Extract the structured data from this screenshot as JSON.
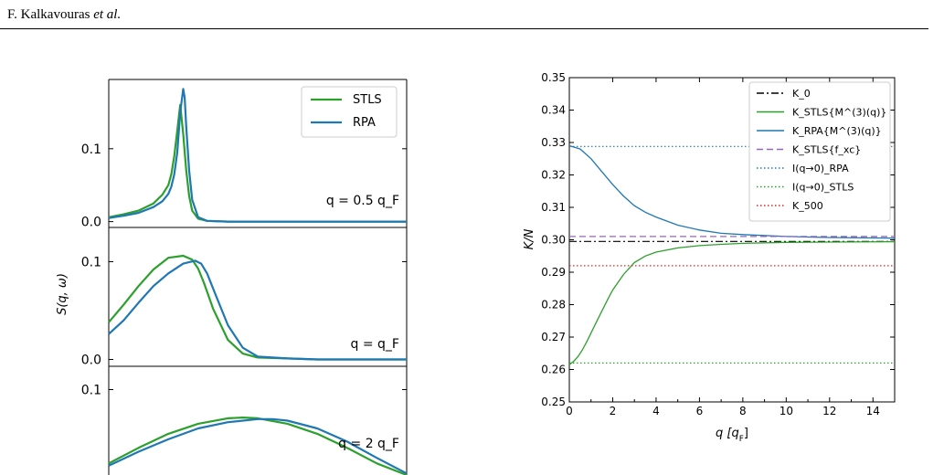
{
  "header": {
    "author_plain": "F. Kalkavouras ",
    "author_italic": "et al."
  },
  "chart_data": [
    {
      "type": "line",
      "subplots": [
        {
          "annotation": "q = 0.5 q_F",
          "yticks": [
            "0.1",
            "0.0"
          ]
        },
        {
          "annotation": "q = q_F",
          "yticks": [
            "0.1",
            "0.0"
          ]
        },
        {
          "annotation": "q = 2 q_F",
          "yticks": [
            "0.1"
          ]
        }
      ],
      "ylabel": "S(q, ω)",
      "legend": {
        "placement": "top-right",
        "entries": [
          "STLS",
          "RPA"
        ]
      },
      "colors": {
        "STLS": "#2ca02c",
        "RPA": "#1f77b4"
      },
      "series": [
        {
          "name": "STLS",
          "panel": 0,
          "x": [
            0.0,
            0.05,
            0.1,
            0.15,
            0.18,
            0.2,
            0.21,
            0.22,
            0.23,
            0.24,
            0.25,
            0.26,
            0.27,
            0.28,
            0.3,
            0.33,
            0.4,
            0.6,
            0.8,
            1.0
          ],
          "y": [
            0.006,
            0.01,
            0.015,
            0.025,
            0.037,
            0.05,
            0.065,
            0.09,
            0.125,
            0.16,
            0.12,
            0.07,
            0.035,
            0.015,
            0.004,
            0.001,
            0,
            0,
            0,
            0
          ]
        },
        {
          "name": "RPA",
          "panel": 0,
          "x": [
            0.0,
            0.05,
            0.1,
            0.15,
            0.18,
            0.2,
            0.21,
            0.22,
            0.23,
            0.24,
            0.25,
            0.255,
            0.26,
            0.27,
            0.28,
            0.3,
            0.33,
            0.4,
            0.6,
            0.8,
            1.0
          ],
          "y": [
            0.005,
            0.008,
            0.012,
            0.02,
            0.028,
            0.038,
            0.048,
            0.065,
            0.095,
            0.15,
            0.182,
            0.17,
            0.13,
            0.07,
            0.03,
            0.006,
            0.001,
            0,
            0,
            0,
            0
          ]
        },
        {
          "name": "STLS",
          "panel": 1,
          "x": [
            0.0,
            0.05,
            0.1,
            0.15,
            0.2,
            0.25,
            0.28,
            0.3,
            0.32,
            0.35,
            0.4,
            0.45,
            0.5,
            0.6,
            0.7,
            1.0
          ],
          "y": [
            0.038,
            0.056,
            0.075,
            0.092,
            0.104,
            0.106,
            0.102,
            0.093,
            0.078,
            0.052,
            0.02,
            0.006,
            0.002,
            0.001,
            0,
            0
          ]
        },
        {
          "name": "RPA",
          "panel": 1,
          "x": [
            0.0,
            0.05,
            0.1,
            0.15,
            0.2,
            0.25,
            0.29,
            0.31,
            0.33,
            0.36,
            0.4,
            0.45,
            0.5,
            0.6,
            0.7,
            1.0
          ],
          "y": [
            0.026,
            0.04,
            0.058,
            0.075,
            0.088,
            0.098,
            0.101,
            0.098,
            0.088,
            0.065,
            0.035,
            0.012,
            0.003,
            0.001,
            0,
            0
          ]
        },
        {
          "name": "STLS",
          "panel": 2,
          "x": [
            0.0,
            0.1,
            0.2,
            0.3,
            0.4,
            0.45,
            0.5,
            0.6,
            0.7,
            0.8,
            0.9,
            1.0
          ],
          "y": [
            0.005,
            0.025,
            0.043,
            0.056,
            0.063,
            0.064,
            0.063,
            0.056,
            0.043,
            0.025,
            0.005,
            -0.01
          ]
        },
        {
          "name": "RPA",
          "panel": 2,
          "x": [
            0.0,
            0.1,
            0.2,
            0.3,
            0.4,
            0.5,
            0.55,
            0.6,
            0.7,
            0.8,
            0.9,
            1.0
          ],
          "y": [
            0.002,
            0.02,
            0.036,
            0.05,
            0.058,
            0.062,
            0.062,
            0.06,
            0.05,
            0.033,
            0.012,
            -0.008
          ]
        }
      ]
    },
    {
      "type": "line",
      "xlabel": "q [q_F]",
      "ylabel": "K/N",
      "xlim": [
        0,
        15
      ],
      "ylim": [
        0.25,
        0.35
      ],
      "xticks": [
        "0",
        "2",
        "4",
        "6",
        "8",
        "10",
        "12",
        "14"
      ],
      "yticks": [
        "0.25",
        "0.26",
        "0.27",
        "0.28",
        "0.29",
        "0.30",
        "0.31",
        "0.32",
        "0.33",
        "0.34",
        "0.35"
      ],
      "legend": {
        "placement": "top-right",
        "entries": [
          "K_0",
          "K_STLS{M^(3)(q)}",
          "K_RPA{M^(3)(q)}",
          "K_STLS{f_xc}",
          "I(q→0)_RPA",
          "I(q→0)_STLS",
          "K_500"
        ]
      },
      "series": [
        {
          "name": "K_0",
          "color": "#000000",
          "style": "dashdot",
          "x": [
            0,
            15
          ],
          "y": [
            0.2995,
            0.2995
          ]
        },
        {
          "name": "K_STLS{M^(3)(q)}",
          "color": "#2ca02c",
          "style": "solid",
          "x": [
            0,
            0.2,
            0.4,
            0.6,
            0.8,
            1.0,
            1.2,
            1.5,
            1.8,
            2.0,
            2.5,
            3.0,
            3.5,
            4.0,
            5.0,
            6.0,
            7.0,
            8.0,
            10.0,
            12.0,
            15.0
          ],
          "y": [
            0.2615,
            0.2625,
            0.264,
            0.266,
            0.2685,
            0.2712,
            0.274,
            0.278,
            0.282,
            0.2845,
            0.2893,
            0.293,
            0.295,
            0.2962,
            0.2975,
            0.2982,
            0.2986,
            0.2989,
            0.2992,
            0.2993,
            0.2994
          ]
        },
        {
          "name": "K_RPA{M^(3)(q)}",
          "color": "#1f77b4",
          "style": "solid",
          "x": [
            0,
            0.5,
            1.0,
            1.5,
            2.0,
            2.5,
            3.0,
            3.5,
            4.0,
            5.0,
            6.0,
            7.0,
            8.0,
            10.0,
            12.0,
            15.0
          ],
          "y": [
            0.329,
            0.328,
            0.325,
            0.321,
            0.317,
            0.3135,
            0.3105,
            0.3085,
            0.307,
            0.3045,
            0.303,
            0.302,
            0.3016,
            0.301,
            0.3007,
            0.3005
          ]
        },
        {
          "name": "K_STLS{f_xc}",
          "color": "#9467bd",
          "style": "dashed",
          "x": [
            0,
            15
          ],
          "y": [
            0.301,
            0.301
          ]
        },
        {
          "name": "I(q→0)_RPA",
          "color": "#1f77b4",
          "style": "dotted",
          "x": [
            0,
            15
          ],
          "y": [
            0.3288,
            0.3288
          ]
        },
        {
          "name": "I(q→0)_STLS",
          "color": "#2ca02c",
          "style": "dotted",
          "x": [
            0,
            15
          ],
          "y": [
            0.262,
            0.262
          ]
        },
        {
          "name": "K_500",
          "color": "#d62728",
          "style": "dotted",
          "x": [
            0,
            15
          ],
          "y": [
            0.292,
            0.292
          ]
        }
      ]
    }
  ]
}
